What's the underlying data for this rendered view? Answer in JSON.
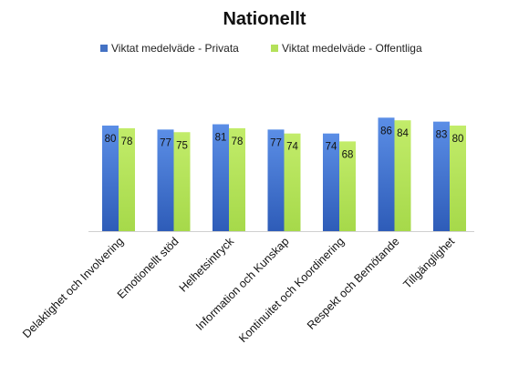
{
  "chart_data": {
    "type": "bar",
    "title": "Nationellt",
    "legend_position": "top",
    "grid": false,
    "ylim": [
      0,
      100
    ],
    "categories": [
      "Delaktighet och Involvering",
      "Emotionellt stöd",
      "Helhetsintryck",
      "Information och Kunskap",
      "Kontinuitet och Koordinering",
      "Respekt och Bemötande",
      "Tillgänglighet"
    ],
    "series": [
      {
        "name": "Viktat medelväde - Privata",
        "color": "#4472C4",
        "values": [
          80,
          77,
          81,
          77,
          74,
          86,
          83
        ]
      },
      {
        "name": "Viktat medelväde - Offentliga",
        "color": "#B4E15A",
        "values": [
          78,
          75,
          78,
          74,
          68,
          84,
          80
        ]
      }
    ]
  }
}
